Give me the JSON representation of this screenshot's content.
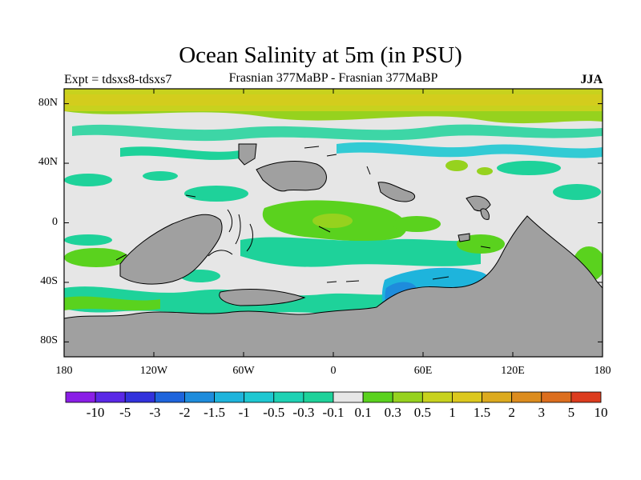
{
  "header": {
    "title": "Ocean Salinity at 5m (in PSU)",
    "experiment": "Expt = tdsxs8-tdsxs7",
    "period": "Frasnian 377MaBP - Frasnian 377MaBP",
    "season": "JJA"
  },
  "map": {
    "lat_ticks": [
      {
        "label": "80N",
        "lat": 80
      },
      {
        "label": "40N",
        "lat": 40
      },
      {
        "label": "0",
        "lat": 0
      },
      {
        "label": "40S",
        "lat": -40
      },
      {
        "label": "80S",
        "lat": -80
      }
    ],
    "lon_ticks": [
      {
        "label": "180",
        "lon": -180
      },
      {
        "label": "120W",
        "lon": -120
      },
      {
        "label": "60W",
        "lon": -60
      },
      {
        "label": "0",
        "lon": 0
      },
      {
        "label": "60E",
        "lon": 60
      },
      {
        "label": "120E",
        "lon": 120
      },
      {
        "label": "180",
        "lon": 180
      }
    ],
    "land_color": "#a0a0a0",
    "neutral_color": "#e6e6e6"
  },
  "colorbar": {
    "labels": [
      "-10",
      "-5",
      "-3",
      "-2",
      "-1.5",
      "-1",
      "-0.5",
      "-0.3",
      "-0.1",
      "0.1",
      "0.3",
      "0.5",
      "1",
      "1.5",
      "2",
      "3",
      "5",
      "10"
    ],
    "colors": [
      "#8a1ee6",
      "#5a28e6",
      "#3232dc",
      "#1e64dc",
      "#1e8cdc",
      "#1eb4dc",
      "#1ec8d2",
      "#1ed2b4",
      "#1ed29a",
      "#e6e6e6",
      "#5ad21e",
      "#96d21e",
      "#c8d21e",
      "#dcc81e",
      "#dcaa1e",
      "#dc8c1e",
      "#dc6e1e",
      "#dc3c1e"
    ]
  }
}
